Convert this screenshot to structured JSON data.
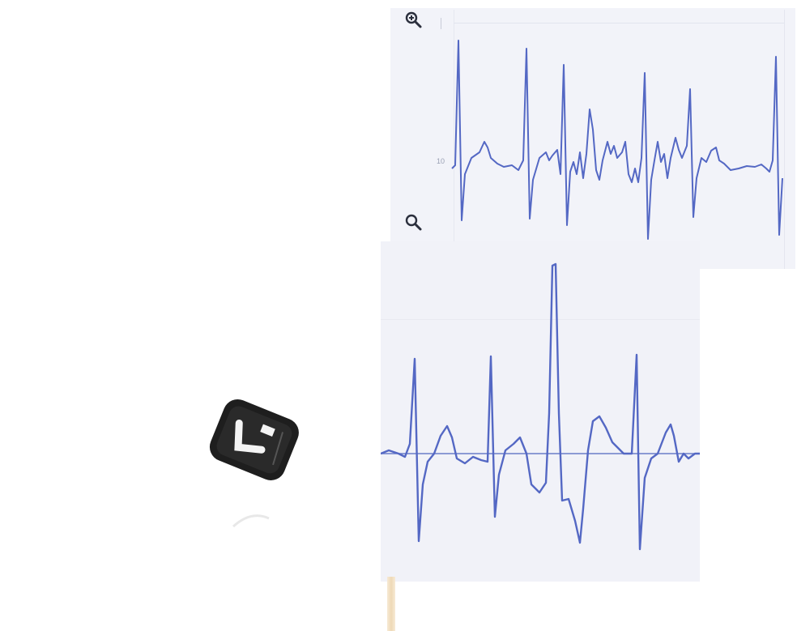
{
  "window": {
    "size_label": ""
  },
  "top_panel": {
    "icons": {
      "zoom_in": "zoom-in-icon",
      "zoom_out": "zoom-out-icon"
    },
    "axis_label": "10",
    "signal_color": "#5468c4"
  },
  "bottom_panel": {
    "signal_color": "#5468c4",
    "baseline_color": "#6b7cc8"
  },
  "device": {
    "description_icon": "device-icon",
    "body_color": "#1e1e1e"
  }
}
